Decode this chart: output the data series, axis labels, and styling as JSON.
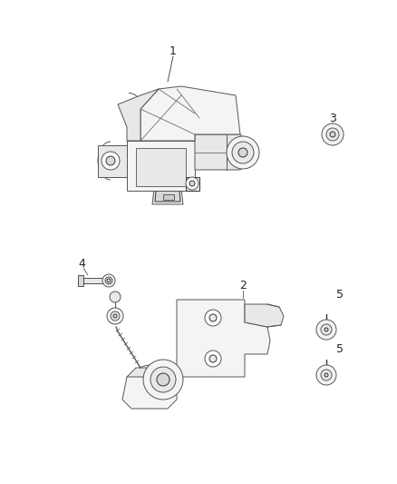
{
  "bg_color": "#ffffff",
  "line_color": "#555555",
  "dark_line": "#333333",
  "light_fill": "#f4f4f4",
  "mid_fill": "#e8e8e8",
  "dark_fill": "#d8d8d8",
  "label_color": "#222222",
  "fig_width": 4.38,
  "fig_height": 5.33,
  "dpi": 100
}
